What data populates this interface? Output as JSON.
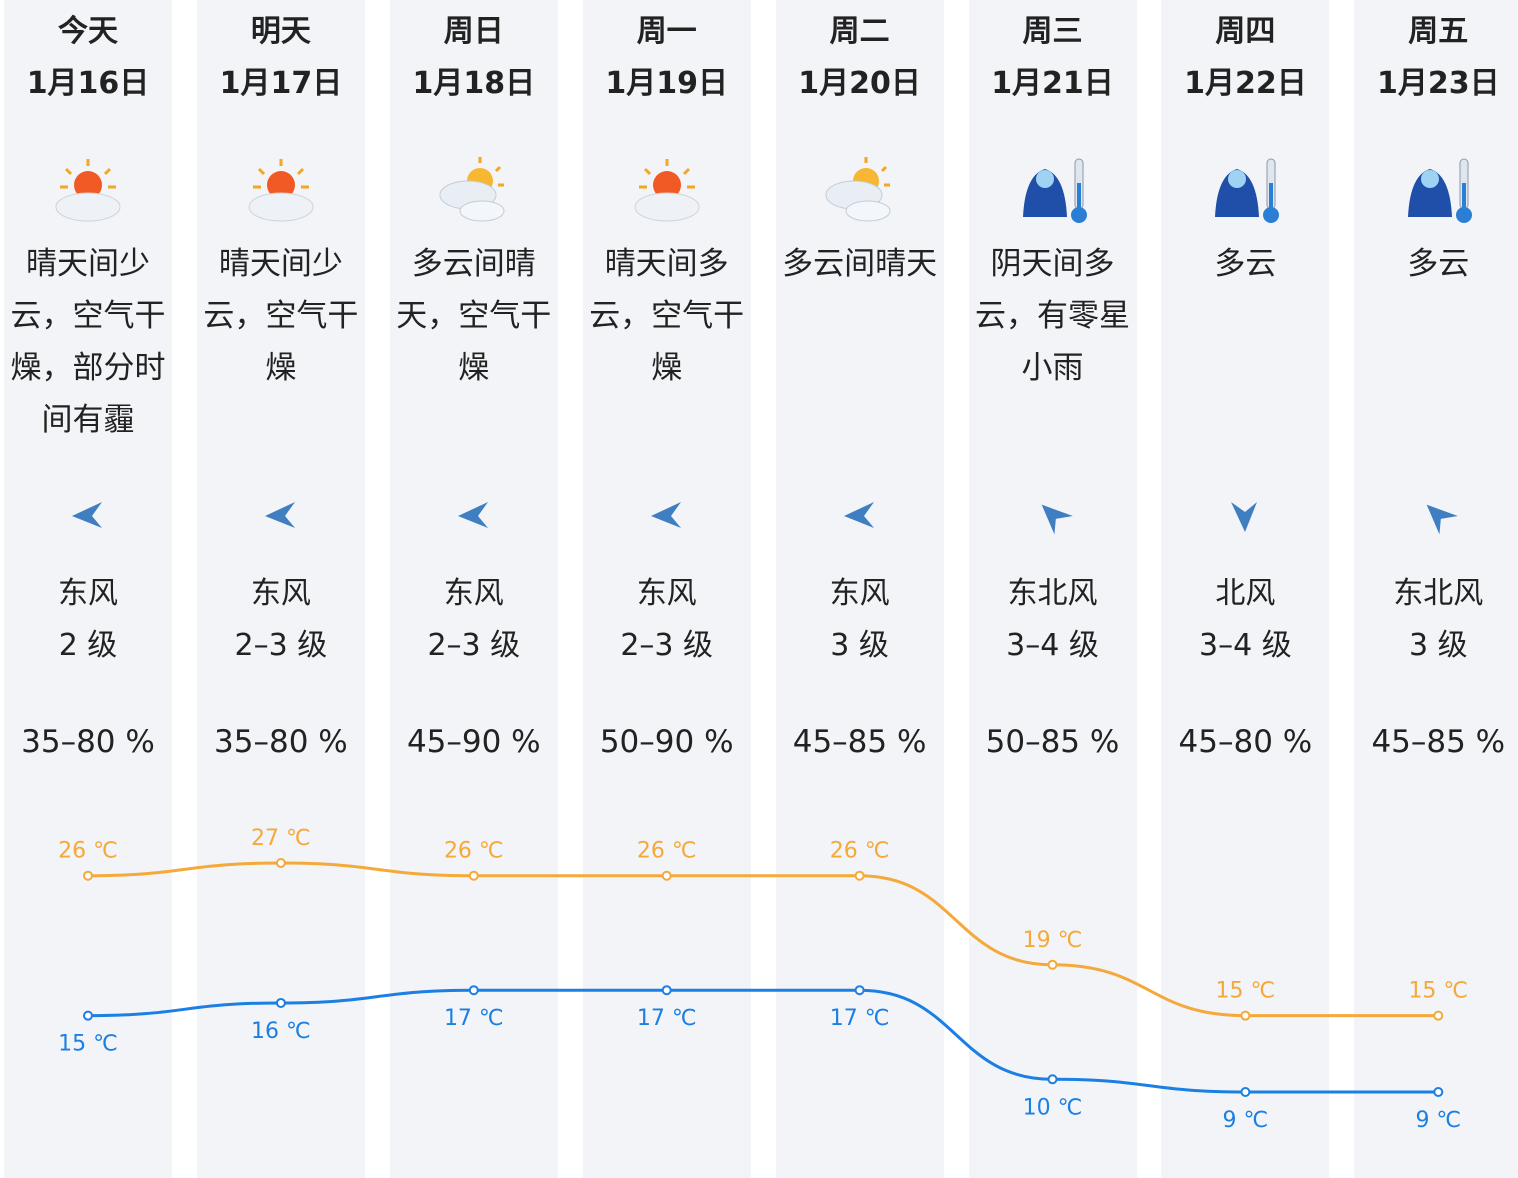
{
  "days": [
    {
      "name": "今天",
      "date": "1月16日",
      "desc": "晴天间少云，空气干燥，部分时间有霾",
      "wind_dir": "东风",
      "wind_level": "2 级",
      "humidity": "35–80 %"
    },
    {
      "name": "明天",
      "date": "1月17日",
      "desc": "晴天间少云，空气干燥",
      "wind_dir": "东风",
      "wind_level": "2–3 级",
      "humidity": "35–80 %"
    },
    {
      "name": "周日",
      "date": "1月18日",
      "desc": "多云间晴天，空气干燥",
      "wind_dir": "东风",
      "wind_level": "2–3 级",
      "humidity": "45–90 %"
    },
    {
      "name": "周一",
      "date": "1月19日",
      "desc": "晴天间多云，空气干燥",
      "wind_dir": "东风",
      "wind_level": "2–3 级",
      "humidity": "50–90 %"
    },
    {
      "name": "周二",
      "date": "1月20日",
      "desc": "多云间晴天",
      "wind_dir": "东风",
      "wind_level": "3 级",
      "humidity": "45–85 %"
    },
    {
      "name": "周三",
      "date": "1月21日",
      "desc": "阴天间多云，有零星小雨",
      "wind_dir": "东北风",
      "wind_level": "3–4 级",
      "humidity": "50–85 %"
    },
    {
      "name": "周四",
      "date": "1月22日",
      "desc": "多云",
      "wind_dir": "北风",
      "wind_level": "3–4 级",
      "humidity": "45–80 %"
    },
    {
      "name": "周五",
      "date": "1月23日",
      "desc": "多云",
      "wind_dir": "东北风",
      "wind_level": "3 级",
      "humidity": "45–85 %"
    }
  ],
  "temps": {
    "high": {
      "values": [
        26,
        27,
        26,
        26,
        26,
        19,
        15,
        15
      ],
      "labels": [
        "26 ℃",
        "27 ℃",
        "26 ℃",
        "26 ℃",
        "26 ℃",
        "19 ℃",
        "15 ℃",
        "15 ℃"
      ],
      "color": "#f5a93a"
    },
    "low": {
      "values": [
        15,
        16,
        17,
        17,
        17,
        10,
        9,
        9
      ],
      "labels": [
        "15 ℃",
        "16 ℃",
        "17 ℃",
        "17 ℃",
        "17 ℃",
        "10 ℃",
        "9 ℃",
        "9 ℃"
      ],
      "color": "#1b7fe3"
    }
  }
}
